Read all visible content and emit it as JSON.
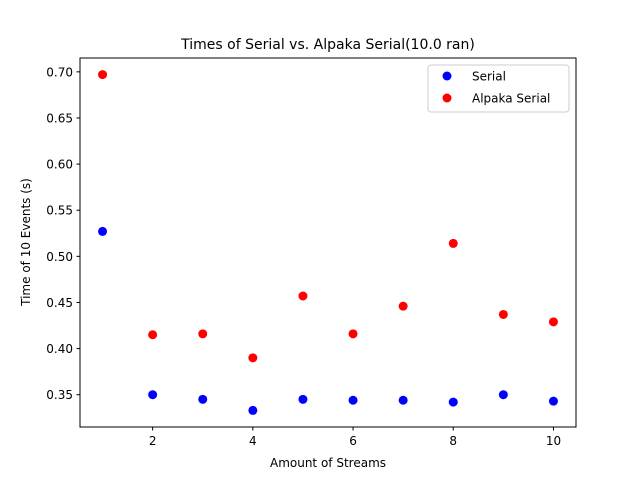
{
  "chart_data": {
    "type": "scatter",
    "title": "Times of Serial vs. Alpaka Serial(10.0 ran)",
    "xlabel": "Amount of Streams",
    "ylabel": "Time of 10 Events (s)",
    "xlim": [
      0.55,
      10.45
    ],
    "ylim": [
      0.315,
      0.715
    ],
    "xticks": [
      2,
      4,
      6,
      8,
      10
    ],
    "xtick_labels": [
      "2",
      "4",
      "6",
      "8",
      "10"
    ],
    "yticks": [
      0.35,
      0.4,
      0.45,
      0.5,
      0.55,
      0.6,
      0.65,
      0.7
    ],
    "ytick_labels": [
      "0.35",
      "0.40",
      "0.45",
      "0.50",
      "0.55",
      "0.60",
      "0.65",
      "0.70"
    ],
    "grid": false,
    "legend_position": "top-right",
    "x": [
      1,
      2,
      3,
      4,
      5,
      6,
      7,
      8,
      9,
      10
    ],
    "series": [
      {
        "name": "Serial",
        "color": "#0000ff",
        "values": [
          0.527,
          0.35,
          0.345,
          0.333,
          0.345,
          0.344,
          0.344,
          0.342,
          0.35,
          0.343
        ]
      },
      {
        "name": "Alpaka Serial",
        "color": "#ff0000",
        "values": [
          0.697,
          0.415,
          0.416,
          0.39,
          0.457,
          0.416,
          0.446,
          0.514,
          0.437,
          0.429
        ]
      }
    ]
  }
}
